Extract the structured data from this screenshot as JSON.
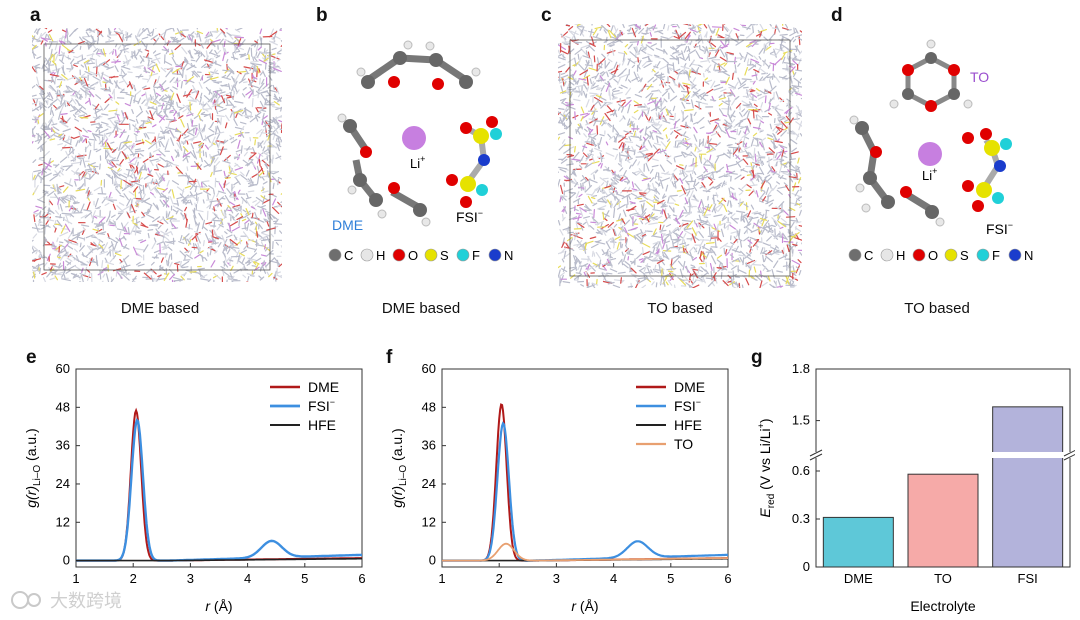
{
  "panels": [
    {
      "letter": "a",
      "caption": "DME based"
    },
    {
      "letter": "b",
      "caption": "DME based"
    },
    {
      "letter": "c",
      "caption": "TO based"
    },
    {
      "letter": "d",
      "caption": "TO based"
    },
    {
      "letter": "e"
    },
    {
      "letter": "f"
    },
    {
      "letter": "g"
    }
  ],
  "molecule_b": {
    "li_label": "Li",
    "li_sup": "+",
    "solvent_label": "DME",
    "anion_label": "FSI",
    "anion_sup": "−"
  },
  "molecule_d": {
    "li_label": "Li",
    "li_sup": "+",
    "ring_label": "TO",
    "anion_label": "FSI",
    "anion_sup": "−"
  },
  "atom_legend": [
    {
      "symbol": "C",
      "color": "#6e6e6e"
    },
    {
      "symbol": "H",
      "color": "#e6e6e6"
    },
    {
      "symbol": "O",
      "color": "#e00000"
    },
    {
      "symbol": "S",
      "color": "#e6e200"
    },
    {
      "symbol": "F",
      "color": "#20d0d8"
    },
    {
      "symbol": "N",
      "color": "#1a3ccc"
    }
  ],
  "colors": {
    "DME": "#b01919",
    "FSI": "#3d8fe0",
    "HFE": "#222222",
    "TO": "#e8a070",
    "li": "#c77fe0",
    "ring_label": "#9b4fcf",
    "dme_label": "#2f7fd8"
  },
  "chart_data": [
    {
      "id": "e",
      "type": "line",
      "xlabel_var": "r",
      "xlabel_unit": "(Å)",
      "ylabel_var": "g(r)",
      "ylabel_sub": "Li–O",
      "ylabel_unit": "(a.u.)",
      "xlim": [
        1,
        6
      ],
      "ylim": [
        -2,
        60
      ],
      "xticks": [
        "1",
        "2",
        "3",
        "4",
        "5",
        "6"
      ],
      "yticks": [
        "0",
        "12",
        "24",
        "36",
        "48",
        "60"
      ],
      "legend_position": "top-right",
      "series": [
        {
          "name": "DME",
          "color": "#b01919",
          "width": 2,
          "peaks": [
            {
              "center": 2.05,
              "height": 47,
              "width": 0.09
            }
          ],
          "baseline_end": 0.8
        },
        {
          "name": "FSI",
          "sup": "−",
          "color": "#3d8fe0",
          "width": 2.4,
          "peaks": [
            {
              "center": 2.07,
              "height": 44,
              "width": 0.1
            },
            {
              "center": 4.42,
              "height": 5.2,
              "width": 0.18
            }
          ],
          "baseline_end": 1.8
        },
        {
          "name": "HFE",
          "color": "#222222",
          "width": 1.6,
          "peaks": [],
          "baseline_end": 0.6
        }
      ]
    },
    {
      "id": "f",
      "type": "line",
      "xlabel_var": "r",
      "xlabel_unit": "(Å)",
      "ylabel_var": "g(r)",
      "ylabel_sub": "Li–O",
      "ylabel_unit": "(a.u.)",
      "xlim": [
        1,
        6
      ],
      "ylim": [
        -2,
        60
      ],
      "xticks": [
        "1",
        "2",
        "3",
        "4",
        "5",
        "6"
      ],
      "yticks": [
        "0",
        "12",
        "24",
        "36",
        "48",
        "60"
      ],
      "legend_position": "top-right",
      "series": [
        {
          "name": "DME",
          "color": "#b01919",
          "width": 2,
          "peaks": [
            {
              "center": 2.04,
              "height": 49,
              "width": 0.09
            }
          ],
          "baseline_end": 0.8
        },
        {
          "name": "FSI",
          "sup": "−",
          "color": "#3d8fe0",
          "width": 2.2,
          "peaks": [
            {
              "center": 2.07,
              "height": 43,
              "width": 0.1
            },
            {
              "center": 4.42,
              "height": 5.1,
              "width": 0.18
            }
          ],
          "baseline_end": 1.8
        },
        {
          "name": "HFE",
          "color": "#222222",
          "width": 1.6,
          "peaks": [],
          "baseline_end": 0.6
        },
        {
          "name": "TO",
          "color": "#e8a070",
          "width": 1.8,
          "peaks": [
            {
              "center": 2.12,
              "height": 5.3,
              "width": 0.14
            }
          ],
          "baseline_end": 0.8
        }
      ]
    },
    {
      "id": "g",
      "type": "bar",
      "categories": [
        "DME",
        "TO",
        "FSI"
      ],
      "values": [
        0.31,
        0.58,
        1.58
      ],
      "colors": [
        "#5ec8d8",
        "#f6aaa8",
        "#b3b3db"
      ],
      "xlabel": "Electrolyte",
      "ylabel_var": "E",
      "ylabel_sub": "red",
      "ylabel_unit_pre": "(V vs Li/Li",
      "ylabel_unit_sup": "+",
      "ylabel_unit_post": ")",
      "ylim_lower": [
        0,
        0.7
      ],
      "ylim_upper": [
        1.3,
        1.8
      ],
      "yticks_lower": [
        "0",
        "0.3",
        "0.6"
      ],
      "yticks_upper": [
        "1.5",
        "1.8"
      ]
    }
  ],
  "watermark": {
    "text": "大数跨境"
  }
}
